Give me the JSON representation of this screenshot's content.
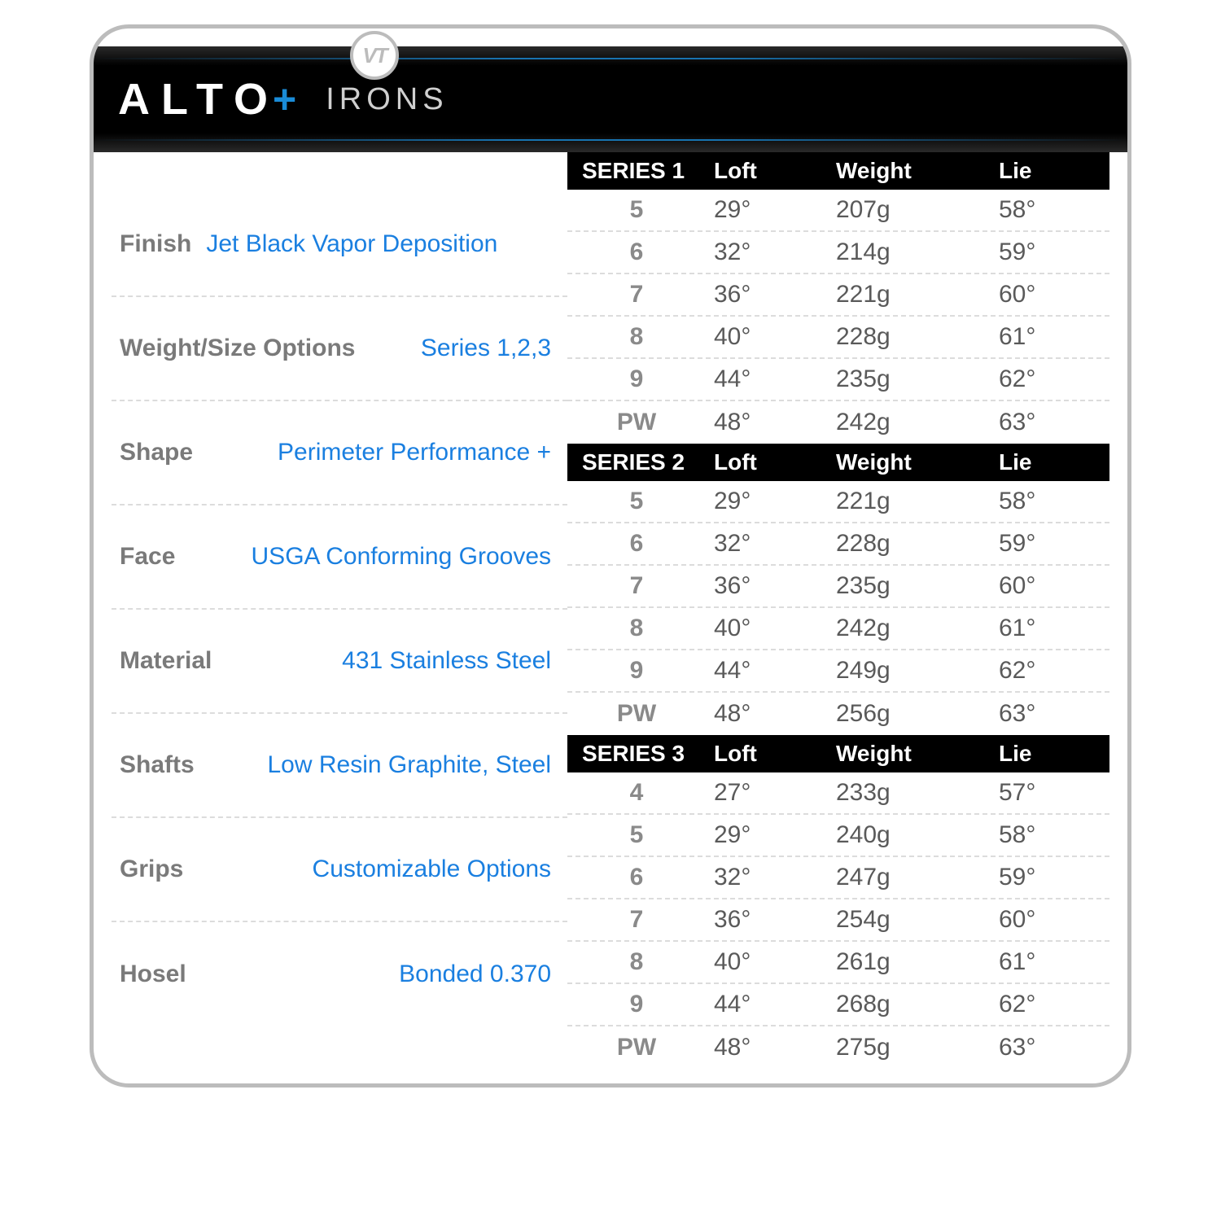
{
  "badge": "VT",
  "brand": "ALTO",
  "brand_plus": "+",
  "subtitle": "IRONS",
  "colors": {
    "border": "#bcbcbc",
    "accent_blue": "#1a8cd8",
    "link_blue": "#1a7fe0",
    "label_gray": "#7a7a7a",
    "data_gray": "#5a5a5a",
    "num_gray": "#8a8a8a",
    "header_bg": "#000000",
    "bg": "#ffffff"
  },
  "specs": [
    {
      "label": "Finish",
      "value": "Jet Black Vapor Deposition",
      "align": "left"
    },
    {
      "label": "Weight/Size Options",
      "value": "Series 1,2,3",
      "align": "right"
    },
    {
      "label": "Shape",
      "value": "Perimeter Performance +",
      "align": "right"
    },
    {
      "label": "Face",
      "value": "USGA Conforming Grooves",
      "align": "right"
    },
    {
      "label": "Material",
      "value": "431 Stainless Steel",
      "align": "right"
    },
    {
      "label": "Shafts",
      "value": "Low Resin Graphite, Steel",
      "align": "right"
    },
    {
      "label": "Grips",
      "value": "Customizable Options",
      "align": "right"
    },
    {
      "label": "Hosel",
      "value": "Bonded 0.370",
      "align": "right"
    }
  ],
  "columns": [
    "",
    "Loft",
    "Weight",
    "Lie"
  ],
  "series": [
    {
      "name": "SERIES 1",
      "rows": [
        {
          "n": "5",
          "loft": "29°",
          "weight": "207g",
          "lie": "58°"
        },
        {
          "n": "6",
          "loft": "32°",
          "weight": "214g",
          "lie": "59°"
        },
        {
          "n": "7",
          "loft": "36°",
          "weight": "221g",
          "lie": "60°"
        },
        {
          "n": "8",
          "loft": "40°",
          "weight": "228g",
          "lie": "61°"
        },
        {
          "n": "9",
          "loft": "44°",
          "weight": "235g",
          "lie": "62°"
        },
        {
          "n": "PW",
          "loft": "48°",
          "weight": "242g",
          "lie": "63°"
        }
      ]
    },
    {
      "name": "SERIES 2",
      "rows": [
        {
          "n": "5",
          "loft": "29°",
          "weight": "221g",
          "lie": "58°"
        },
        {
          "n": "6",
          "loft": "32°",
          "weight": "228g",
          "lie": "59°"
        },
        {
          "n": "7",
          "loft": "36°",
          "weight": "235g",
          "lie": "60°"
        },
        {
          "n": "8",
          "loft": "40°",
          "weight": "242g",
          "lie": "61°"
        },
        {
          "n": "9",
          "loft": "44°",
          "weight": "249g",
          "lie": "62°"
        },
        {
          "n": "PW",
          "loft": "48°",
          "weight": "256g",
          "lie": "63°"
        }
      ]
    },
    {
      "name": "SERIES 3",
      "rows": [
        {
          "n": "4",
          "loft": "27°",
          "weight": "233g",
          "lie": "57°"
        },
        {
          "n": "5",
          "loft": "29°",
          "weight": "240g",
          "lie": "58°"
        },
        {
          "n": "6",
          "loft": "32°",
          "weight": "247g",
          "lie": "59°"
        },
        {
          "n": "7",
          "loft": "36°",
          "weight": "254g",
          "lie": "60°"
        },
        {
          "n": "8",
          "loft": "40°",
          "weight": "261g",
          "lie": "61°"
        },
        {
          "n": "9",
          "loft": "44°",
          "weight": "268g",
          "lie": "62°"
        },
        {
          "n": "PW",
          "loft": "48°",
          "weight": "275g",
          "lie": "63°"
        }
      ]
    }
  ]
}
